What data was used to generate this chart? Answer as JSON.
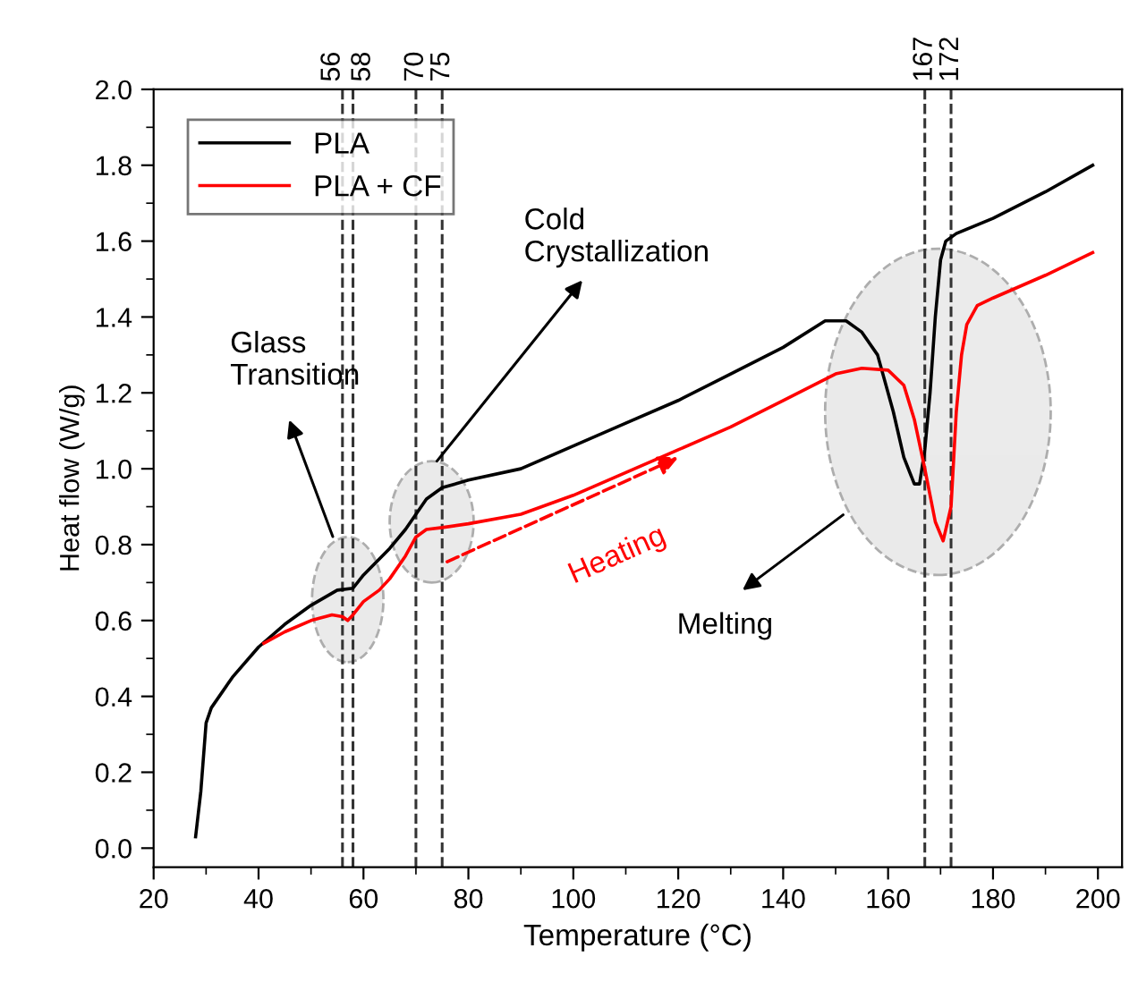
{
  "chart_data": {
    "type": "line",
    "xlabel": "Temperature (°C)",
    "ylabel": "Heat flow (W/g)",
    "xlim": [
      20,
      204.6
    ],
    "ylim": [
      -0.05,
      2.0
    ],
    "xticks": [
      20,
      40,
      60,
      80,
      100,
      120,
      140,
      160,
      180,
      200
    ],
    "yticks": [
      {
        "value": 0,
        "label": "0.0"
      },
      0.2,
      0.4,
      0.6,
      0.8,
      {
        "value": 1,
        "label": "1.0"
      },
      1.2,
      1.4,
      1.6,
      1.8,
      {
        "value": 2,
        "label": "2.0"
      }
    ],
    "grid": false,
    "legend": "top left",
    "line_style": "solid",
    "marker": "none",
    "series": [
      {
        "name": "PLA",
        "color": "#000000",
        "x": [
          28,
          29,
          30,
          31,
          35,
          40,
          45,
          50,
          55,
          58,
          60,
          65,
          68,
          70,
          72,
          75,
          80,
          90,
          100,
          110,
          120,
          130,
          140,
          148,
          152,
          155,
          158,
          161,
          163,
          165,
          166,
          167,
          168,
          169,
          170,
          171,
          173,
          180,
          190,
          199
        ],
        "values": [
          0.03,
          0.15,
          0.33,
          0.37,
          0.45,
          0.53,
          0.59,
          0.64,
          0.68,
          0.685,
          0.72,
          0.79,
          0.84,
          0.88,
          0.92,
          0.95,
          0.97,
          1.0,
          1.06,
          1.12,
          1.18,
          1.25,
          1.32,
          1.39,
          1.39,
          1.36,
          1.3,
          1.15,
          1.03,
          0.96,
          0.96,
          1.05,
          1.2,
          1.4,
          1.55,
          1.6,
          1.62,
          1.66,
          1.73,
          1.8
        ]
      },
      {
        "name": "PLA + CF",
        "color": "#ff0000",
        "x": [
          41,
          45,
          50,
          54,
          56,
          57,
          58,
          60,
          63,
          65,
          68,
          70,
          72,
          75,
          80,
          90,
          100,
          110,
          120,
          130,
          140,
          150,
          155,
          160,
          163,
          165,
          167,
          169,
          170.5,
          172,
          173,
          174,
          175,
          177,
          180,
          190,
          199
        ],
        "values": [
          0.54,
          0.57,
          0.6,
          0.615,
          0.61,
          0.6,
          0.615,
          0.65,
          0.68,
          0.71,
          0.77,
          0.82,
          0.84,
          0.845,
          0.855,
          0.88,
          0.93,
          0.99,
          1.05,
          1.11,
          1.18,
          1.25,
          1.265,
          1.26,
          1.22,
          1.13,
          1.0,
          0.86,
          0.81,
          0.9,
          1.15,
          1.3,
          1.38,
          1.43,
          1.45,
          1.51,
          1.57
        ]
      }
    ],
    "ref_lines": [
      {
        "axis": "x",
        "value": 56,
        "label": "56",
        "color": "#333333",
        "line_style": "dashed"
      },
      {
        "axis": "x",
        "value": 58,
        "label": "58",
        "color": "#333333",
        "line_style": "dashed"
      },
      {
        "axis": "x",
        "value": 70,
        "label": "70",
        "color": "#333333",
        "line_style": "dashed"
      },
      {
        "axis": "x",
        "value": 75,
        "label": "75",
        "color": "#333333",
        "line_style": "dashed"
      },
      {
        "axis": "x",
        "value": 167,
        "label": "167",
        "color": "#333333",
        "line_style": "dashed"
      },
      {
        "axis": "x",
        "value": 172,
        "label": "172",
        "color": "#333333",
        "line_style": "dashed"
      }
    ],
    "annotations": [
      "Glass\nTransition",
      {
        "text": "Cold\nCrystallization",
        "x": 74,
        "y": 1.02
      },
      {
        "text": "Heating",
        "x": 120,
        "y": 1.03
      },
      "Melting"
    ]
  }
}
